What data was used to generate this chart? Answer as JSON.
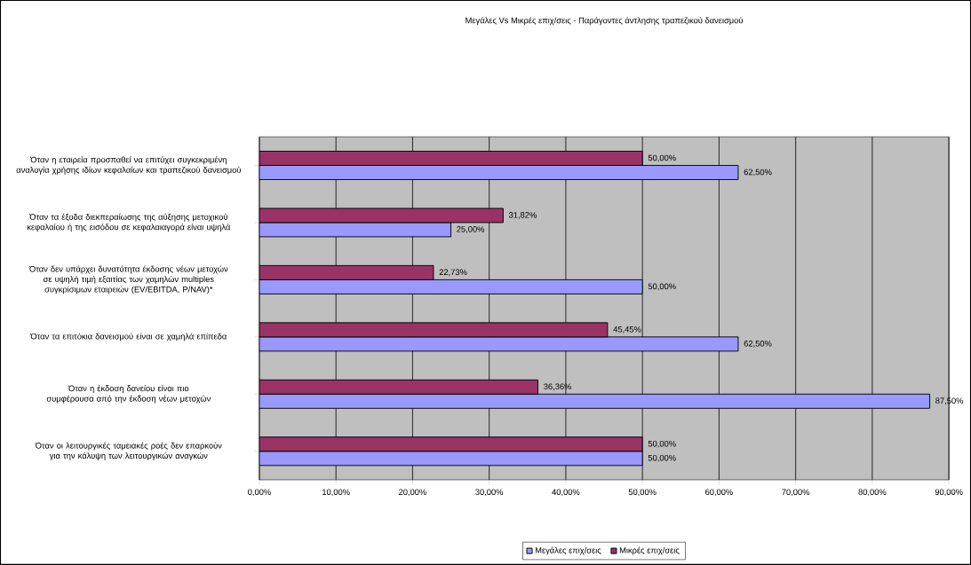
{
  "chart_data": {
    "type": "bar",
    "orientation": "horizontal",
    "title": "Μεγάλες Vs Μικρές επιχ/σεις - Παράγοντες άντλησης τραπεζικού δανεισμού",
    "categories": [
      "Όταν η εταιρεία προσπαθεί να επιτύχει συγκεκριμένη αναλογία χρήσης ιδίων κεφαλαίων και τραπεζικού δανεισμού",
      "Όταν τα έξοδα διεκπεραίωσης της αύξησης μετοχικού κεφαλαίου ή της εισόδου σε κεφαλαιαγορά είναι υψηλά",
      "Όταν δεν υπάρχει δυνατότητα έκδοσης νέων μετοχών σε υψηλή τιμή εξαιτίας των χαμηλών multiples συγκρίσιμων εταιρειών (EV/EBITDA, P/NAV)*",
      "Όταν τα επιτόκια δανεισμού είναι σε χαμηλά επίπεδα",
      "Όταν η έκδοση δανείου είναι πιο συμφέρουσα από την έκδοση νέων μετοχών",
      "Όταν οι λειτουργικές ταμειακές ροές δεν επαρκούν για την κάλυψη των λειτουργικών αναγκών"
    ],
    "series": [
      {
        "name": "Μεγάλες επιχ/σεις",
        "color": "#9999ff",
        "values": [
          62.5,
          25,
          50,
          62.5,
          87.5,
          50
        ],
        "value_labels": [
          "62,50%",
          "25,00%",
          "50,00%",
          "62,50%",
          "87,50%",
          "50,00%"
        ]
      },
      {
        "name": "Μικρές επιχ/σεις",
        "color": "#993366",
        "values": [
          50,
          31.82,
          22.73,
          45.45,
          36.36,
          50
        ],
        "value_labels": [
          "50,00%",
          "31,82%",
          "22,73%",
          "45,45%",
          "36,36%",
          "50,00%"
        ]
      }
    ],
    "xlim": [
      0,
      90
    ],
    "xticks": [
      {
        "value": 0,
        "label": "0,00%"
      },
      {
        "value": 10,
        "label": "10,00%"
      },
      {
        "value": 20,
        "label": "20,00%"
      },
      {
        "value": 30,
        "label": "30,00%"
      },
      {
        "value": 40,
        "label": "40,00%"
      },
      {
        "value": 50,
        "label": "50,00%"
      },
      {
        "value": 60,
        "label": "60,00%"
      },
      {
        "value": 70,
        "label": "70,00%"
      },
      {
        "value": 80,
        "label": "80,00%"
      },
      {
        "value": 90,
        "label": "90,00%"
      }
    ],
    "grid": "x",
    "legend": "bottom"
  }
}
